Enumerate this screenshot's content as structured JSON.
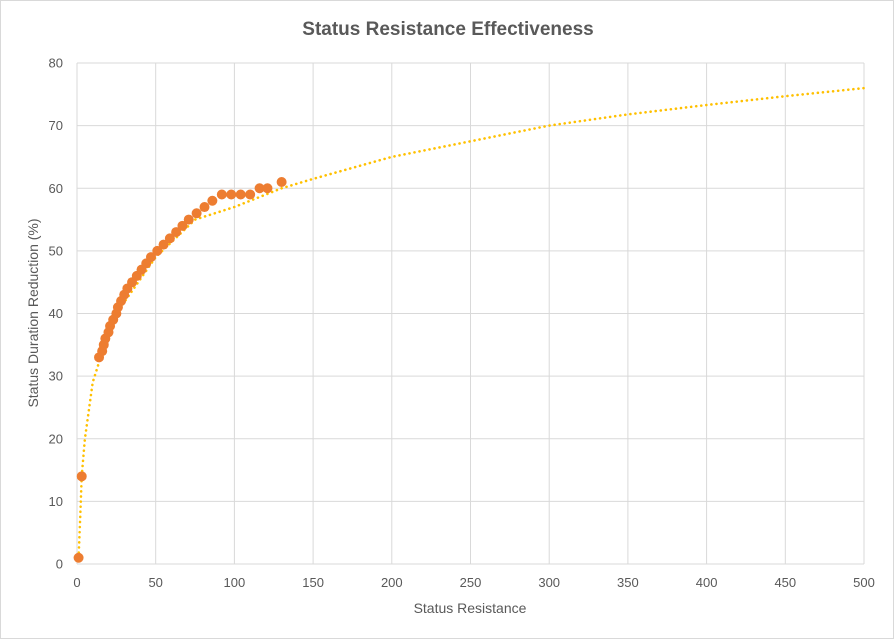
{
  "chart_data": {
    "type": "scatter",
    "title": "Status Resistance Effectiveness",
    "xlabel": "Status Resistance",
    "ylabel": "Status Duration Reduction (%)",
    "xlim": [
      0,
      500
    ],
    "ylim": [
      0,
      80
    ],
    "x_ticks": [
      0,
      50,
      100,
      150,
      200,
      250,
      300,
      350,
      400,
      450,
      500
    ],
    "y_ticks": [
      0,
      10,
      20,
      30,
      40,
      50,
      60,
      70,
      80
    ],
    "grid": true,
    "legend": "none",
    "colors": {
      "points": "#ed7d31",
      "trendline": "#ffc000",
      "grid": "#d9d9d9",
      "text": "#595959"
    },
    "series": [
      {
        "values_xy": [
          [
            1,
            1
          ],
          [
            3,
            14
          ],
          [
            14,
            33
          ],
          [
            16,
            34
          ],
          [
            17,
            35
          ],
          [
            18,
            36
          ],
          [
            20,
            37
          ],
          [
            21,
            38
          ],
          [
            23,
            39
          ],
          [
            25,
            40
          ],
          [
            26,
            41
          ],
          [
            28,
            42
          ],
          [
            30,
            43
          ],
          [
            32,
            44
          ],
          [
            35,
            45
          ],
          [
            38,
            46
          ],
          [
            41,
            47
          ],
          [
            44,
            48
          ],
          [
            47,
            49
          ],
          [
            51,
            50
          ],
          [
            55,
            51
          ],
          [
            59,
            52
          ],
          [
            63,
            53
          ],
          [
            67,
            54
          ],
          [
            71,
            55
          ],
          [
            76,
            56
          ],
          [
            81,
            57
          ],
          [
            86,
            58
          ],
          [
            92,
            59
          ],
          [
            98,
            59
          ],
          [
            104,
            59
          ],
          [
            110,
            59
          ],
          [
            116,
            60
          ],
          [
            121,
            60
          ],
          [
            130,
            61
          ]
        ]
      },
      {
        "trendline": "logarithmic",
        "values_xy": [
          [
            1,
            1
          ],
          [
            2,
            7
          ],
          [
            3,
            14
          ],
          [
            5,
            20
          ],
          [
            10,
            29
          ],
          [
            15,
            33
          ],
          [
            25,
            40
          ],
          [
            50,
            49
          ],
          [
            75,
            55
          ],
          [
            100,
            57
          ],
          [
            130,
            60
          ],
          [
            150,
            61.5
          ],
          [
            200,
            65
          ],
          [
            250,
            67.5
          ],
          [
            300,
            70
          ],
          [
            350,
            71.8
          ],
          [
            400,
            73.3
          ],
          [
            450,
            74.7
          ],
          [
            500,
            76
          ]
        ]
      }
    ]
  }
}
